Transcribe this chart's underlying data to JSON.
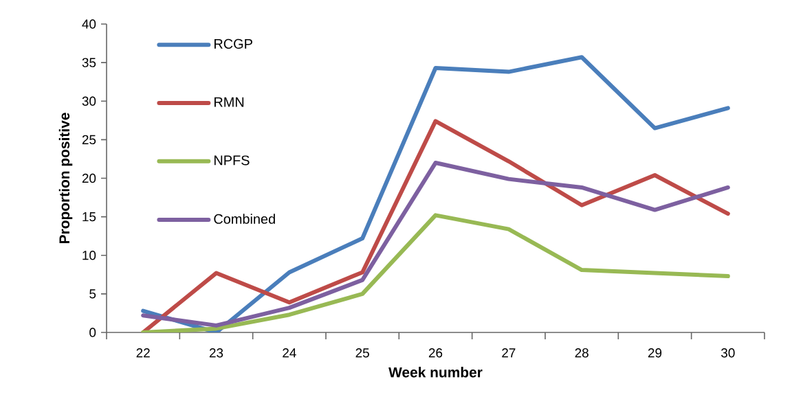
{
  "chart_data": {
    "type": "line",
    "xlabel": "Week number",
    "ylabel": "Proportion positive",
    "categories": [
      "22",
      "23",
      "24",
      "25",
      "26",
      "27",
      "28",
      "29",
      "30"
    ],
    "ylim": [
      0,
      40
    ],
    "yticks": [
      0,
      5,
      10,
      15,
      20,
      25,
      30,
      35,
      40
    ],
    "grid": false,
    "legend": "top left",
    "series": [
      {
        "name": "RCGP",
        "color": "#4a7ebb",
        "values": [
          2.8,
          0,
          7.8,
          12.2,
          34.3,
          33.8,
          35.7,
          26.5,
          29.1
        ]
      },
      {
        "name": "RMN",
        "color": "#be4b48",
        "values": [
          0,
          7.7,
          3.9,
          7.8,
          27.4,
          22.2,
          16.5,
          20.4,
          15.4
        ]
      },
      {
        "name": "NPFS",
        "color": "#98b954",
        "values": [
          0,
          0.5,
          2.3,
          5.0,
          15.2,
          13.4,
          8.1,
          7.7,
          7.3
        ]
      },
      {
        "name": "Combined",
        "color": "#7d60a0",
        "values": [
          2.2,
          0.9,
          3.2,
          6.8,
          22.0,
          19.9,
          18.8,
          15.9,
          18.8
        ]
      }
    ]
  }
}
